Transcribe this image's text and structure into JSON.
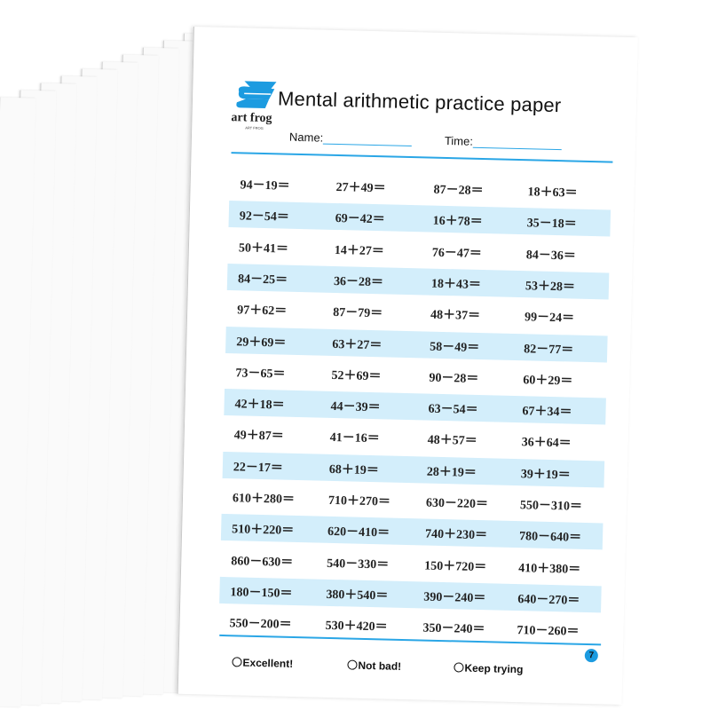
{
  "header": {
    "brand": "art frog",
    "brand_sub": "ART FROG",
    "title": "Mental arithmetic practice paper",
    "name_label": "Name:",
    "time_label": "Time:"
  },
  "problems": [
    [
      "94－19＝",
      "27＋49＝",
      "87－28＝",
      "18＋63＝"
    ],
    [
      "92－54＝",
      "69－42＝",
      "16＋78＝",
      "35－18＝"
    ],
    [
      "50＋41＝",
      "14＋27＝",
      "76－47＝",
      "84－36＝"
    ],
    [
      "84－25＝",
      "36－28＝",
      "18＋43＝",
      "53＋28＝"
    ],
    [
      "97＋62＝",
      "87－79＝",
      "48＋37＝",
      "99－24＝"
    ],
    [
      "29＋69＝",
      "63＋27＝",
      "58－49＝",
      "82－77＝"
    ],
    [
      "73－65＝",
      "52＋69＝",
      "90－28＝",
      "60＋29＝"
    ],
    [
      "42＋18＝",
      "44－39＝",
      "63－54＝",
      "67＋34＝"
    ],
    [
      "49＋87＝",
      "41－16＝",
      "48＋57＝",
      "36＋64＝"
    ],
    [
      "22－17＝",
      "68＋19＝",
      "28＋19＝",
      "39＋19＝"
    ],
    [
      "610＋280＝",
      "710＋270＝",
      "630－220＝",
      "550－310＝"
    ],
    [
      "510＋220＝",
      "620－410＝",
      "740＋230＝",
      "780－640＝"
    ],
    [
      "860－630＝",
      "540－330＝",
      "150＋720＝",
      "410＋380＝"
    ],
    [
      "180－150＝",
      "380＋540＝",
      "390－240＝",
      "640－270＝"
    ],
    [
      "550－200＝",
      "530＋420＝",
      "350－240＝",
      "710－260＝"
    ]
  ],
  "ratings": [
    "Excellent!",
    "Not bad!",
    "Keep trying"
  ],
  "page_number": "7",
  "colors": {
    "accent": "#2aa6e6",
    "row_shade": "#d3eefb"
  }
}
